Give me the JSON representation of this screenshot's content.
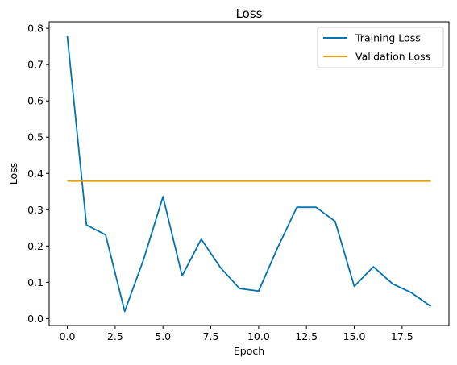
{
  "chart_data": {
    "type": "line",
    "title": "Loss",
    "xlabel": "Epoch",
    "ylabel": "Loss",
    "xlim": [
      -0.95,
      19.95
    ],
    "ylim": [
      -0.019,
      0.818
    ],
    "x_ticks": [
      0,
      2.5,
      5,
      7.5,
      10,
      12.5,
      15,
      17.5
    ],
    "x_tick_labels": [
      "0.0",
      "2.5",
      "5.0",
      "7.5",
      "10.0",
      "12.5",
      "15.0",
      "17.5"
    ],
    "y_ticks": [
      0,
      0.1,
      0.2,
      0.3,
      0.4,
      0.5,
      0.6,
      0.7,
      0.8
    ],
    "y_tick_labels": [
      "0.0",
      "0.1",
      "0.2",
      "0.3",
      "0.4",
      "0.5",
      "0.6",
      "0.7",
      "0.8"
    ],
    "grid": false,
    "legend_position": "top-right",
    "x": [
      0,
      1,
      2,
      3,
      4,
      5,
      6,
      7,
      8,
      9,
      10,
      11,
      12,
      13,
      14,
      15,
      16,
      17,
      18,
      19
    ],
    "series": [
      {
        "name": "Training Loss",
        "color": "#0072b2",
        "values": [
          0.778,
          0.258,
          0.231,
          0.02,
          0.165,
          0.336,
          0.118,
          0.219,
          0.141,
          0.083,
          0.076,
          0.196,
          0.307,
          0.307,
          0.268,
          0.089,
          0.143,
          0.096,
          0.071,
          0.034
        ]
      },
      {
        "name": "Validation Loss",
        "color": "#e69f00",
        "values": [
          0.379,
          0.379,
          0.379,
          0.379,
          0.379,
          0.379,
          0.379,
          0.379,
          0.379,
          0.379,
          0.379,
          0.379,
          0.379,
          0.379,
          0.379,
          0.379,
          0.379,
          0.379,
          0.379,
          0.379
        ]
      }
    ]
  }
}
